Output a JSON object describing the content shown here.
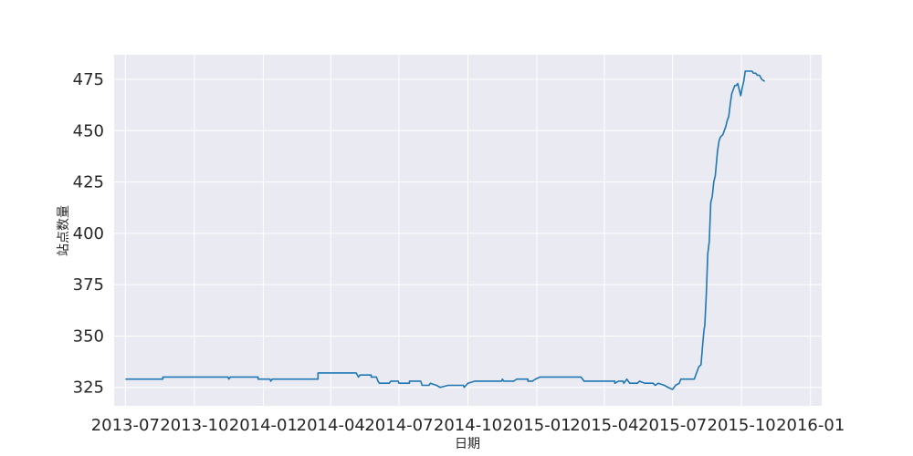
{
  "chart_data": {
    "type": "line",
    "title": "",
    "xlabel": "日期",
    "ylabel": "站点数量",
    "grid": true,
    "legend": "none",
    "x_ticks": [
      "2013-07",
      "2013-10",
      "2014-01",
      "2014-04",
      "2014-07",
      "2014-10",
      "2015-01",
      "2015-04",
      "2015-07",
      "2015-10",
      "2016-01"
    ],
    "y_ticks": [
      325,
      350,
      375,
      400,
      425,
      450,
      475
    ],
    "xlim": [
      "2013-06-16",
      "2016-01-16"
    ],
    "ylim": [
      316,
      487
    ],
    "series": [
      {
        "color": "#1f77b4",
        "points": [
          [
            "2013-07-01",
            329
          ],
          [
            "2013-08-20",
            329
          ],
          [
            "2013-08-20",
            330
          ],
          [
            "2013-11-15",
            330
          ],
          [
            "2013-11-16",
            329
          ],
          [
            "2013-11-18",
            330
          ],
          [
            "2013-12-25",
            330
          ],
          [
            "2013-12-25",
            329
          ],
          [
            "2014-01-10",
            329
          ],
          [
            "2014-01-11",
            328
          ],
          [
            "2014-01-13",
            329
          ],
          [
            "2014-03-15",
            329
          ],
          [
            "2014-03-15",
            332
          ],
          [
            "2014-05-05",
            332
          ],
          [
            "2014-05-08",
            330
          ],
          [
            "2014-05-10",
            331
          ],
          [
            "2014-05-25",
            331
          ],
          [
            "2014-05-25",
            330
          ],
          [
            "2014-06-01",
            330
          ],
          [
            "2014-06-03",
            328
          ],
          [
            "2014-06-05",
            327
          ],
          [
            "2014-06-18",
            327
          ],
          [
            "2014-06-20",
            328
          ],
          [
            "2014-06-30",
            328
          ],
          [
            "2014-07-01",
            327
          ],
          [
            "2014-07-15",
            327
          ],
          [
            "2014-07-15",
            328
          ],
          [
            "2014-07-30",
            328
          ],
          [
            "2014-08-01",
            326
          ],
          [
            "2014-08-10",
            326
          ],
          [
            "2014-08-12",
            327
          ],
          [
            "2014-08-20",
            326
          ],
          [
            "2014-08-25",
            325
          ],
          [
            "2014-09-05",
            326
          ],
          [
            "2014-09-25",
            326
          ],
          [
            "2014-09-26",
            325
          ],
          [
            "2014-10-01",
            327
          ],
          [
            "2014-10-10",
            328
          ],
          [
            "2014-11-15",
            328
          ],
          [
            "2014-11-16",
            329
          ],
          [
            "2014-11-18",
            328
          ],
          [
            "2014-12-01",
            328
          ],
          [
            "2014-12-05",
            329
          ],
          [
            "2014-12-20",
            329
          ],
          [
            "2014-12-20",
            328
          ],
          [
            "2014-12-26",
            328
          ],
          [
            "2014-12-30",
            329
          ],
          [
            "2015-01-05",
            330
          ],
          [
            "2015-03-01",
            330
          ],
          [
            "2015-03-05",
            328
          ],
          [
            "2015-04-15",
            328
          ],
          [
            "2015-04-15",
            327
          ],
          [
            "2015-04-20",
            328
          ],
          [
            "2015-04-26",
            328
          ],
          [
            "2015-04-27",
            327
          ],
          [
            "2015-05-01",
            329
          ],
          [
            "2015-05-05",
            327
          ],
          [
            "2015-05-15",
            327
          ],
          [
            "2015-05-18",
            328
          ],
          [
            "2015-05-25",
            327
          ],
          [
            "2015-06-05",
            327
          ],
          [
            "2015-06-08",
            326
          ],
          [
            "2015-06-12",
            327
          ],
          [
            "2015-06-20",
            326
          ],
          [
            "2015-06-25",
            325
          ],
          [
            "2015-07-01",
            324
          ],
          [
            "2015-07-05",
            326
          ],
          [
            "2015-07-10",
            327
          ],
          [
            "2015-07-12",
            329
          ],
          [
            "2015-07-30",
            329
          ],
          [
            "2015-08-02",
            332
          ],
          [
            "2015-08-05",
            335
          ],
          [
            "2015-08-08",
            336
          ],
          [
            "2015-08-10",
            345
          ],
          [
            "2015-08-12",
            353
          ],
          [
            "2015-08-13",
            355
          ],
          [
            "2015-08-15",
            370
          ],
          [
            "2015-08-17",
            390
          ],
          [
            "2015-08-19",
            396
          ],
          [
            "2015-08-21",
            415
          ],
          [
            "2015-08-23",
            418
          ],
          [
            "2015-08-25",
            425
          ],
          [
            "2015-08-27",
            428
          ],
          [
            "2015-08-28",
            432
          ],
          [
            "2015-08-30",
            440
          ],
          [
            "2015-09-01",
            445
          ],
          [
            "2015-09-03",
            447
          ],
          [
            "2015-09-06",
            448
          ],
          [
            "2015-09-08",
            450
          ],
          [
            "2015-09-10",
            452
          ],
          [
            "2015-09-12",
            455
          ],
          [
            "2015-09-14",
            457
          ],
          [
            "2015-09-16",
            463
          ],
          [
            "2015-09-18",
            468
          ],
          [
            "2015-09-20",
            470
          ],
          [
            "2015-09-22",
            472
          ],
          [
            "2015-09-24",
            472
          ],
          [
            "2015-09-26",
            473
          ],
          [
            "2015-09-28",
            470
          ],
          [
            "2015-09-30",
            467
          ],
          [
            "2015-10-02",
            471
          ],
          [
            "2015-10-04",
            474
          ],
          [
            "2015-10-06",
            479
          ],
          [
            "2015-10-15",
            479
          ],
          [
            "2015-10-17",
            478
          ],
          [
            "2015-10-20",
            478
          ],
          [
            "2015-10-22",
            477
          ],
          [
            "2015-10-25",
            477
          ],
          [
            "2015-10-28",
            475
          ],
          [
            "2015-11-01",
            474
          ]
        ]
      }
    ]
  }
}
